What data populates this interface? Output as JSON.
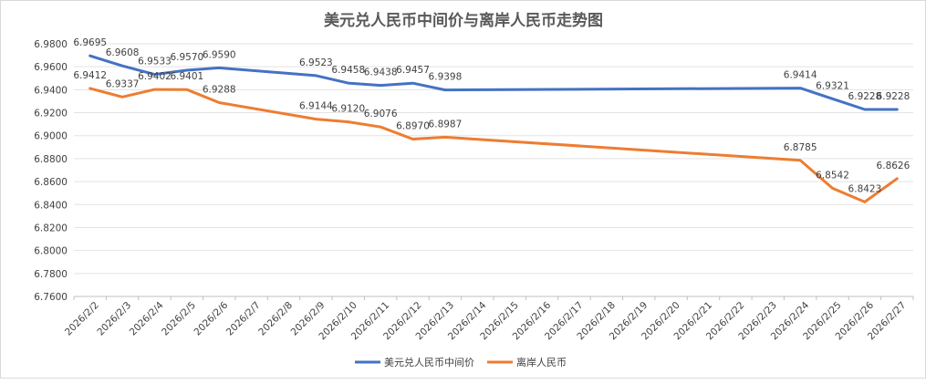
{
  "chart_data": {
    "type": "line",
    "title": "美元兑人民币中间价与离岸人民币走势图",
    "xlabel": "",
    "ylabel": "",
    "ylim": [
      6.76,
      6.98
    ],
    "ystep": 0.02,
    "grid": true,
    "legend_position": "bottom",
    "categories": [
      "2026/2/2",
      "2026/2/3",
      "2026/2/4",
      "2026/2/5",
      "2026/2/6",
      "2026/2/7",
      "2026/2/8",
      "2026/2/9",
      "2026/2/10",
      "2026/2/11",
      "2026/2/12",
      "2026/2/13",
      "2026/2/14",
      "2026/2/15",
      "2026/2/16",
      "2026/2/17",
      "2026/2/18",
      "2026/2/19",
      "2026/2/20",
      "2026/2/21",
      "2026/2/22",
      "2026/2/23",
      "2026/2/24",
      "2026/2/25",
      "2026/2/26",
      "2026/2/27"
    ],
    "series": [
      {
        "name": "美元兑人民币中间价",
        "color": "#4472c4",
        "points": [
          {
            "x": "2026/2/2",
            "y": 6.9695,
            "label": "6.9695"
          },
          {
            "x": "2026/2/3",
            "y": 6.9608,
            "label": "6.9608"
          },
          {
            "x": "2026/2/4",
            "y": 6.9533,
            "label": "6.9533"
          },
          {
            "x": "2026/2/5",
            "y": 6.957,
            "label": "6.9570"
          },
          {
            "x": "2026/2/6",
            "y": 6.959,
            "label": "6.9590"
          },
          {
            "x": "2026/2/9",
            "y": 6.9523,
            "label": "6.9523"
          },
          {
            "x": "2026/2/10",
            "y": 6.9458,
            "label": "6.9458"
          },
          {
            "x": "2026/2/11",
            "y": 6.9438,
            "label": "6.9438"
          },
          {
            "x": "2026/2/12",
            "y": 6.9457,
            "label": "6.9457"
          },
          {
            "x": "2026/2/13",
            "y": 6.9398,
            "label": "6.9398"
          },
          {
            "x": "2026/2/24",
            "y": 6.9414,
            "label": "6.9414"
          },
          {
            "x": "2026/2/25",
            "y": 6.9321,
            "label": "6.9321"
          },
          {
            "x": "2026/2/26",
            "y": 6.9228,
            "label": "6.9228"
          },
          {
            "x": "2026/2/27",
            "y": 6.9228,
            "label": "6.9228"
          }
        ]
      },
      {
        "name": "离岸人民币",
        "color": "#ed7d31",
        "points": [
          {
            "x": "2026/2/2",
            "y": 6.9412,
            "label": "6.9412"
          },
          {
            "x": "2026/2/3",
            "y": 6.9337,
            "label": "6.9337"
          },
          {
            "x": "2026/2/4",
            "y": 6.9402,
            "label": "6.9402"
          },
          {
            "x": "2026/2/5",
            "y": 6.9401,
            "label": "6.9401"
          },
          {
            "x": "2026/2/6",
            "y": 6.9288,
            "label": "6.9288"
          },
          {
            "x": "2026/2/9",
            "y": 6.9144,
            "label": "6.9144"
          },
          {
            "x": "2026/2/10",
            "y": 6.912,
            "label": "6.9120"
          },
          {
            "x": "2026/2/11",
            "y": 6.9076,
            "label": "6.9076"
          },
          {
            "x": "2026/2/12",
            "y": 6.897,
            "label": "6.8970"
          },
          {
            "x": "2026/2/13",
            "y": 6.8987,
            "label": "6.8987"
          },
          {
            "x": "2026/2/24",
            "y": 6.8785,
            "label": "6.8785"
          },
          {
            "x": "2026/2/25",
            "y": 6.8542,
            "label": "6.8542"
          },
          {
            "x": "2026/2/26",
            "y": 6.8423,
            "label": "6.8423"
          },
          {
            "x": "2026/2/27",
            "y": 6.8626,
            "label": "6.8626"
          }
        ]
      }
    ]
  }
}
